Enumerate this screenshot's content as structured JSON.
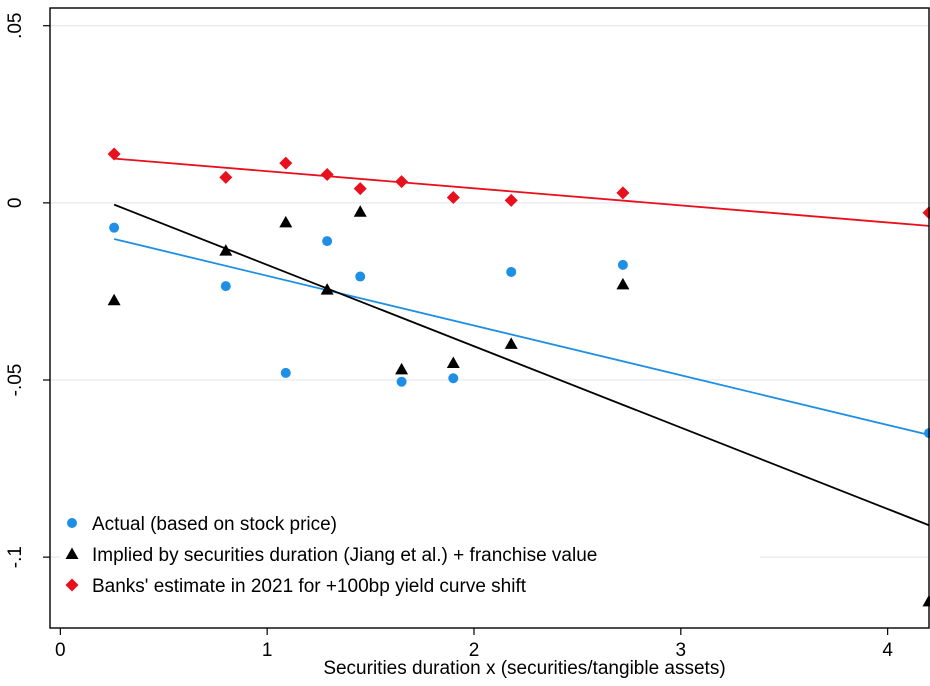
{
  "chart_data": {
    "type": "scatter",
    "xlabel": "Securities duration x (securities/tangible assets)",
    "ylabel": "",
    "xlim": [
      -0.05,
      4.2
    ],
    "ylim": [
      -0.12,
      0.055
    ],
    "xticks": [
      0,
      1,
      2,
      3,
      4
    ],
    "xtick_labels": [
      "0",
      "1",
      "2",
      "3",
      "4"
    ],
    "yticks": [
      0.05,
      0,
      -0.05,
      -0.1
    ],
    "ytick_labels": [
      ".05",
      "0",
      "-.05",
      "-.1"
    ],
    "grid": true,
    "legend_position": "bottom-left",
    "series": [
      {
        "name": "Actual (based on stock price)",
        "marker": "circle",
        "color": "#1f8fe5",
        "points": [
          [
            0.26,
            -0.007
          ],
          [
            0.8,
            -0.0235
          ],
          [
            1.09,
            -0.048
          ],
          [
            1.29,
            -0.0108
          ],
          [
            1.45,
            -0.0208
          ],
          [
            1.65,
            -0.0505
          ],
          [
            1.9,
            -0.0495
          ],
          [
            2.18,
            -0.0195
          ],
          [
            2.72,
            -0.0175
          ],
          [
            4.2,
            -0.065
          ]
        ],
        "fit": [
          [
            0.26,
            -0.0102
          ],
          [
            4.2,
            -0.0655
          ]
        ]
      },
      {
        "name": "Implied by securities duration (Jiang et al.) + franchise value",
        "marker": "triangle",
        "color": "#000000",
        "points": [
          [
            0.26,
            -0.0275
          ],
          [
            0.8,
            -0.0135
          ],
          [
            1.09,
            -0.0055
          ],
          [
            1.29,
            -0.0245
          ],
          [
            1.45,
            -0.0025
          ],
          [
            1.65,
            -0.047
          ],
          [
            1.9,
            -0.0452
          ],
          [
            2.18,
            -0.0398
          ],
          [
            2.72,
            -0.023
          ],
          [
            4.2,
            -0.1125
          ]
        ],
        "fit": [
          [
            0.26,
            -0.0005
          ],
          [
            4.2,
            -0.091
          ]
        ]
      },
      {
        "name": "Banks' estimate in 2021 for +100bp yield curve shift",
        "marker": "diamond",
        "color": "#e8101c",
        "points": [
          [
            0.26,
            0.0138
          ],
          [
            0.8,
            0.0072
          ],
          [
            1.09,
            0.0112
          ],
          [
            1.29,
            0.008
          ],
          [
            1.45,
            0.004
          ],
          [
            1.65,
            0.006
          ],
          [
            1.9,
            0.0015
          ],
          [
            2.18,
            0.0007
          ],
          [
            2.72,
            0.0028
          ],
          [
            4.2,
            -0.0028
          ]
        ],
        "fit": [
          [
            0.26,
            0.0125
          ],
          [
            4.2,
            -0.0065
          ]
        ]
      }
    ]
  }
}
